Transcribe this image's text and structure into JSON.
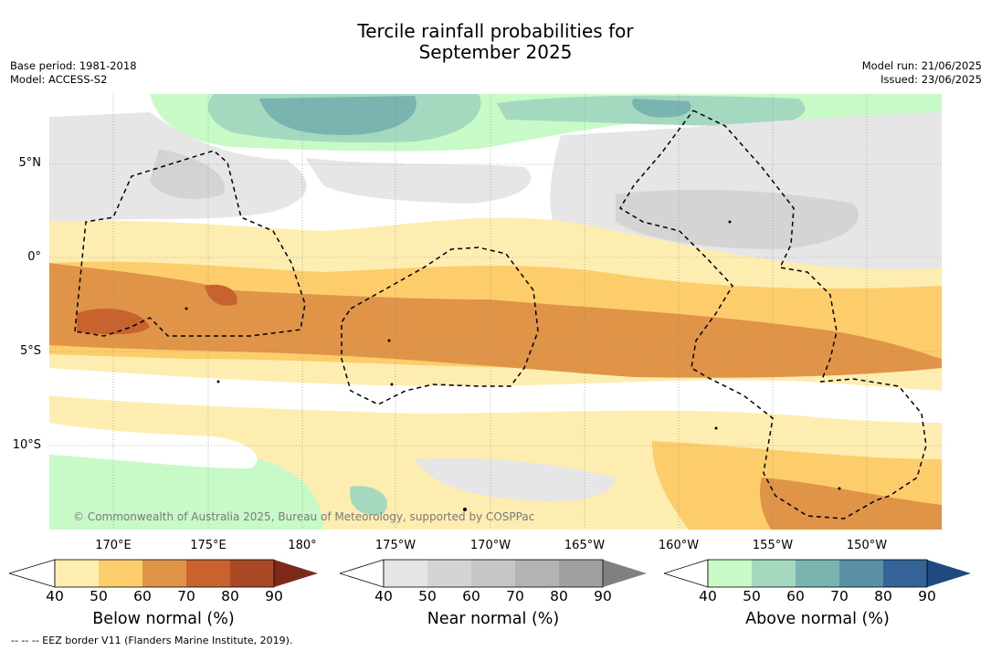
{
  "title": {
    "line1": "Tercile rainfall probabilities for",
    "line2": "September 2025"
  },
  "meta": {
    "base_period": "Base period: 1981-2018",
    "model": "Model: ACCESS-S2",
    "model_run": "Model run: 21/06/2025",
    "issued": "Issued: 23/06/2025"
  },
  "axes": {
    "lat_labels": [
      "5°N",
      "0°",
      "5°S",
      "10°S"
    ],
    "lon_labels": [
      "170°E",
      "175°E",
      "180°",
      "175°W",
      "170°W",
      "165°W",
      "160°W",
      "155°W",
      "150°W"
    ]
  },
  "copyright": "© Commonwealth of Australia 2025, Bureau of Meteorology, supported by COSPPac",
  "colorbars": [
    {
      "label": "Below normal (%)",
      "ticks": [
        "40",
        "50",
        "60",
        "70",
        "80",
        "90"
      ],
      "colors": [
        "#fdedb0",
        "#fccd6a",
        "#e09447",
        "#c8632f",
        "#a84924",
        "#7d2a1a"
      ]
    },
    {
      "label": "Near normal (%)",
      "ticks": [
        "40",
        "50",
        "60",
        "70",
        "80",
        "90"
      ],
      "colors": [
        "#e6e6e6",
        "#d4d4d4",
        "#c6c6c6",
        "#b3b3b3",
        "#a0a0a0",
        "#808080"
      ]
    },
    {
      "label": "Above normal (%)",
      "ticks": [
        "40",
        "50",
        "60",
        "70",
        "80",
        "90"
      ],
      "colors": [
        "#c8fac8",
        "#a5d9bf",
        "#7ab4b0",
        "#5a91a6",
        "#346498",
        "#1f4a80"
      ]
    }
  ],
  "footnote": "-- -- -- EEZ border V11 (Flanders Marine Institute, 2019)."
}
